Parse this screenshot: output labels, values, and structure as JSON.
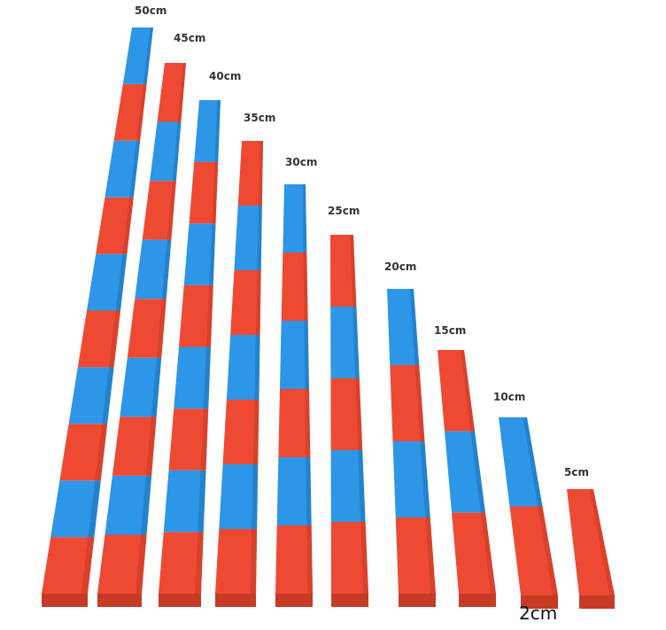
{
  "rods": [
    {
      "label": "50cm",
      "segments": 10
    },
    {
      "label": "45cm",
      "segments": 9
    },
    {
      "label": "40cm",
      "segments": 8
    },
    {
      "label": "35cm",
      "segments": 7
    },
    {
      "label": "30cm",
      "segments": 6
    },
    {
      "label": "25cm",
      "segments": 5
    },
    {
      "label": "20cm",
      "segments": 4
    },
    {
      "label": "15cm",
      "segments": 3
    },
    {
      "label": "10cm",
      "segments": 2
    },
    {
      "label": "5cm",
      "segments": 1
    }
  ],
  "width_label": "2cm",
  "colors": {
    "red": "#ee4a33",
    "red_side": "#c63a26",
    "blue": "#2d96e6",
    "blue_side": "#1d72b8"
  }
}
